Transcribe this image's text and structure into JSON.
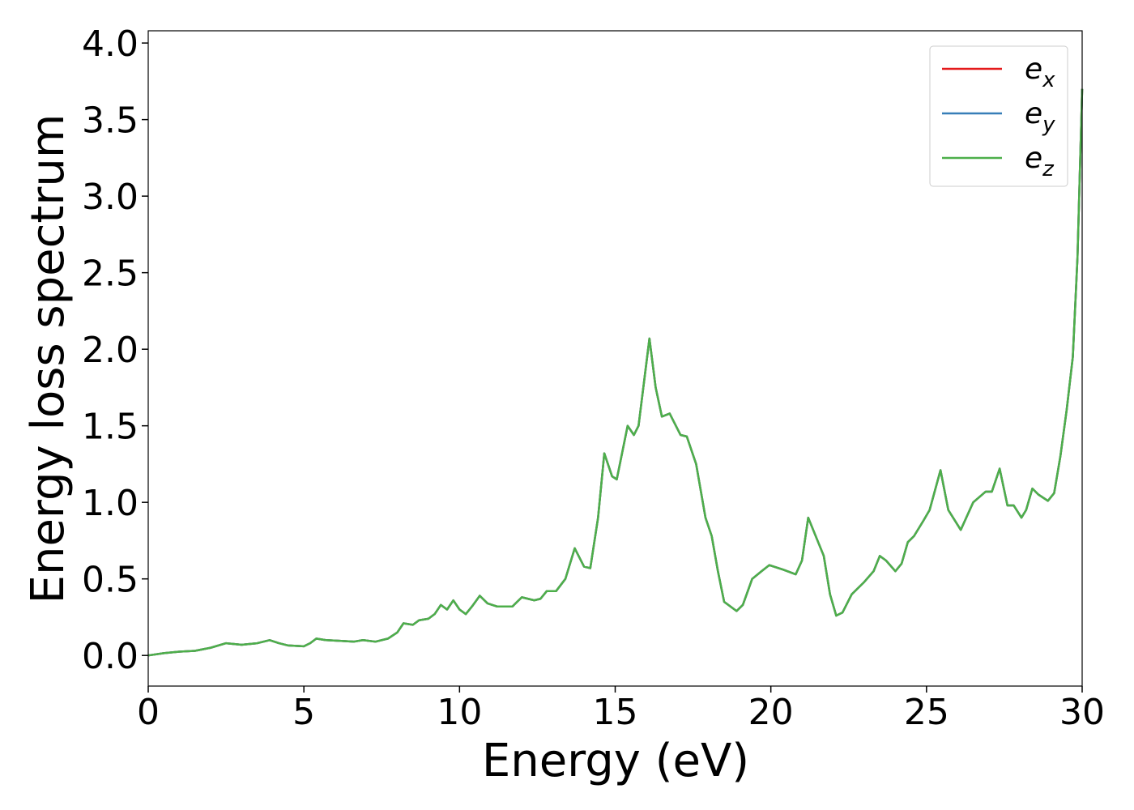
{
  "chart_data": {
    "type": "line",
    "x_label": "Energy (eV)",
    "y_label": "Energy loss spectrum",
    "x": [
      0,
      0.5,
      1,
      1.5,
      2,
      2.5,
      3,
      3.5,
      3.9,
      4.2,
      4.5,
      5,
      5.2,
      5.4,
      5.7,
      6.2,
      6.6,
      6.9,
      7.3,
      7.7,
      8.0,
      8.2,
      8.5,
      8.7,
      9.0,
      9.2,
      9.4,
      9.6,
      9.8,
      10.0,
      10.2,
      10.4,
      10.65,
      10.9,
      11.2,
      11.7,
      12.0,
      12.4,
      12.6,
      12.8,
      13.1,
      13.4,
      13.7,
      14.0,
      14.2,
      14.45,
      14.65,
      14.9,
      15.05,
      15.4,
      15.6,
      15.75,
      16.1,
      16.3,
      16.5,
      16.75,
      17.1,
      17.3,
      17.6,
      17.9,
      18.1,
      18.3,
      18.5,
      18.9,
      19.1,
      19.4,
      19.7,
      19.95,
      20.4,
      20.8,
      21.0,
      21.2,
      21.5,
      21.7,
      21.9,
      22.1,
      22.3,
      22.6,
      23.0,
      23.3,
      23.5,
      23.7,
      24.0,
      24.2,
      24.4,
      24.6,
      24.9,
      25.1,
      25.45,
      25.7,
      26.1,
      26.5,
      26.9,
      27.1,
      27.35,
      27.6,
      27.8,
      28.05,
      28.2,
      28.4,
      28.6,
      28.9,
      29.1,
      29.3,
      29.5,
      29.7,
      29.85,
      30.0
    ],
    "series": [
      {
        "name": "ex",
        "color": "#e41a1c",
        "values": [
          0.0,
          0.015,
          0.025,
          0.03,
          0.05,
          0.08,
          0.07,
          0.08,
          0.1,
          0.08,
          0.065,
          0.06,
          0.08,
          0.11,
          0.1,
          0.095,
          0.09,
          0.1,
          0.09,
          0.11,
          0.15,
          0.21,
          0.2,
          0.23,
          0.24,
          0.27,
          0.33,
          0.3,
          0.36,
          0.3,
          0.27,
          0.32,
          0.39,
          0.34,
          0.32,
          0.32,
          0.38,
          0.36,
          0.37,
          0.42,
          0.42,
          0.5,
          0.7,
          0.58,
          0.57,
          0.9,
          1.32,
          1.17,
          1.15,
          1.5,
          1.44,
          1.5,
          2.07,
          1.75,
          1.56,
          1.58,
          1.44,
          1.43,
          1.25,
          0.9,
          0.78,
          0.55,
          0.35,
          0.29,
          0.33,
          0.5,
          0.55,
          0.59,
          0.56,
          0.53,
          0.62,
          0.9,
          0.75,
          0.65,
          0.4,
          0.26,
          0.28,
          0.4,
          0.48,
          0.55,
          0.65,
          0.62,
          0.55,
          0.6,
          0.74,
          0.78,
          0.88,
          0.95,
          1.21,
          0.95,
          0.82,
          1.0,
          1.07,
          1.07,
          1.22,
          0.98,
          0.98,
          0.9,
          0.95,
          1.09,
          1.05,
          1.01,
          1.06,
          1.3,
          1.6,
          1.95,
          2.6,
          3.7
        ]
      },
      {
        "name": "ey",
        "color": "#377eb8",
        "values": [
          0.0,
          0.015,
          0.025,
          0.03,
          0.05,
          0.08,
          0.07,
          0.08,
          0.1,
          0.08,
          0.065,
          0.06,
          0.08,
          0.11,
          0.1,
          0.095,
          0.09,
          0.1,
          0.09,
          0.11,
          0.15,
          0.21,
          0.2,
          0.23,
          0.24,
          0.27,
          0.33,
          0.3,
          0.36,
          0.3,
          0.27,
          0.32,
          0.39,
          0.34,
          0.32,
          0.32,
          0.38,
          0.36,
          0.37,
          0.42,
          0.42,
          0.5,
          0.7,
          0.58,
          0.57,
          0.9,
          1.32,
          1.17,
          1.15,
          1.5,
          1.44,
          1.5,
          2.07,
          1.75,
          1.56,
          1.58,
          1.44,
          1.43,
          1.25,
          0.9,
          0.78,
          0.55,
          0.35,
          0.29,
          0.33,
          0.5,
          0.55,
          0.59,
          0.56,
          0.53,
          0.62,
          0.9,
          0.75,
          0.65,
          0.4,
          0.26,
          0.28,
          0.4,
          0.48,
          0.55,
          0.65,
          0.62,
          0.55,
          0.6,
          0.74,
          0.78,
          0.88,
          0.95,
          1.21,
          0.95,
          0.82,
          1.0,
          1.07,
          1.07,
          1.22,
          0.98,
          0.98,
          0.9,
          0.95,
          1.09,
          1.05,
          1.01,
          1.06,
          1.3,
          1.6,
          1.95,
          2.6,
          3.7
        ]
      },
      {
        "name": "ez",
        "color": "#4daf4a",
        "values": [
          0.0,
          0.015,
          0.025,
          0.03,
          0.05,
          0.08,
          0.07,
          0.08,
          0.1,
          0.08,
          0.065,
          0.06,
          0.08,
          0.11,
          0.1,
          0.095,
          0.09,
          0.1,
          0.09,
          0.11,
          0.15,
          0.21,
          0.2,
          0.23,
          0.24,
          0.27,
          0.33,
          0.3,
          0.36,
          0.3,
          0.27,
          0.32,
          0.39,
          0.34,
          0.32,
          0.32,
          0.38,
          0.36,
          0.37,
          0.42,
          0.42,
          0.5,
          0.7,
          0.58,
          0.57,
          0.9,
          1.32,
          1.17,
          1.15,
          1.5,
          1.44,
          1.5,
          2.07,
          1.75,
          1.56,
          1.58,
          1.44,
          1.43,
          1.25,
          0.9,
          0.78,
          0.55,
          0.35,
          0.29,
          0.33,
          0.5,
          0.55,
          0.59,
          0.56,
          0.53,
          0.62,
          0.9,
          0.75,
          0.65,
          0.4,
          0.26,
          0.28,
          0.4,
          0.48,
          0.55,
          0.65,
          0.62,
          0.55,
          0.6,
          0.74,
          0.78,
          0.88,
          0.95,
          1.21,
          0.95,
          0.82,
          1.0,
          1.07,
          1.07,
          1.22,
          0.98,
          0.98,
          0.9,
          0.95,
          1.09,
          1.05,
          1.01,
          1.06,
          1.3,
          1.6,
          1.95,
          2.6,
          3.7
        ]
      }
    ],
    "xlim": [
      0,
      30
    ],
    "xticks": [
      0,
      5,
      10,
      15,
      20,
      25,
      30
    ],
    "ylim": [
      -0.2,
      4.08
    ],
    "yticks": [
      {
        "value": 0,
        "label": "0.0"
      },
      0.5,
      {
        "value": 1,
        "label": "1.0"
      },
      1.5,
      {
        "value": 2,
        "label": "2.0"
      },
      2.5,
      {
        "value": 3,
        "label": "3.0"
      },
      3.5,
      {
        "value": 4,
        "label": "4.0"
      }
    ],
    "legend": "upper right"
  }
}
